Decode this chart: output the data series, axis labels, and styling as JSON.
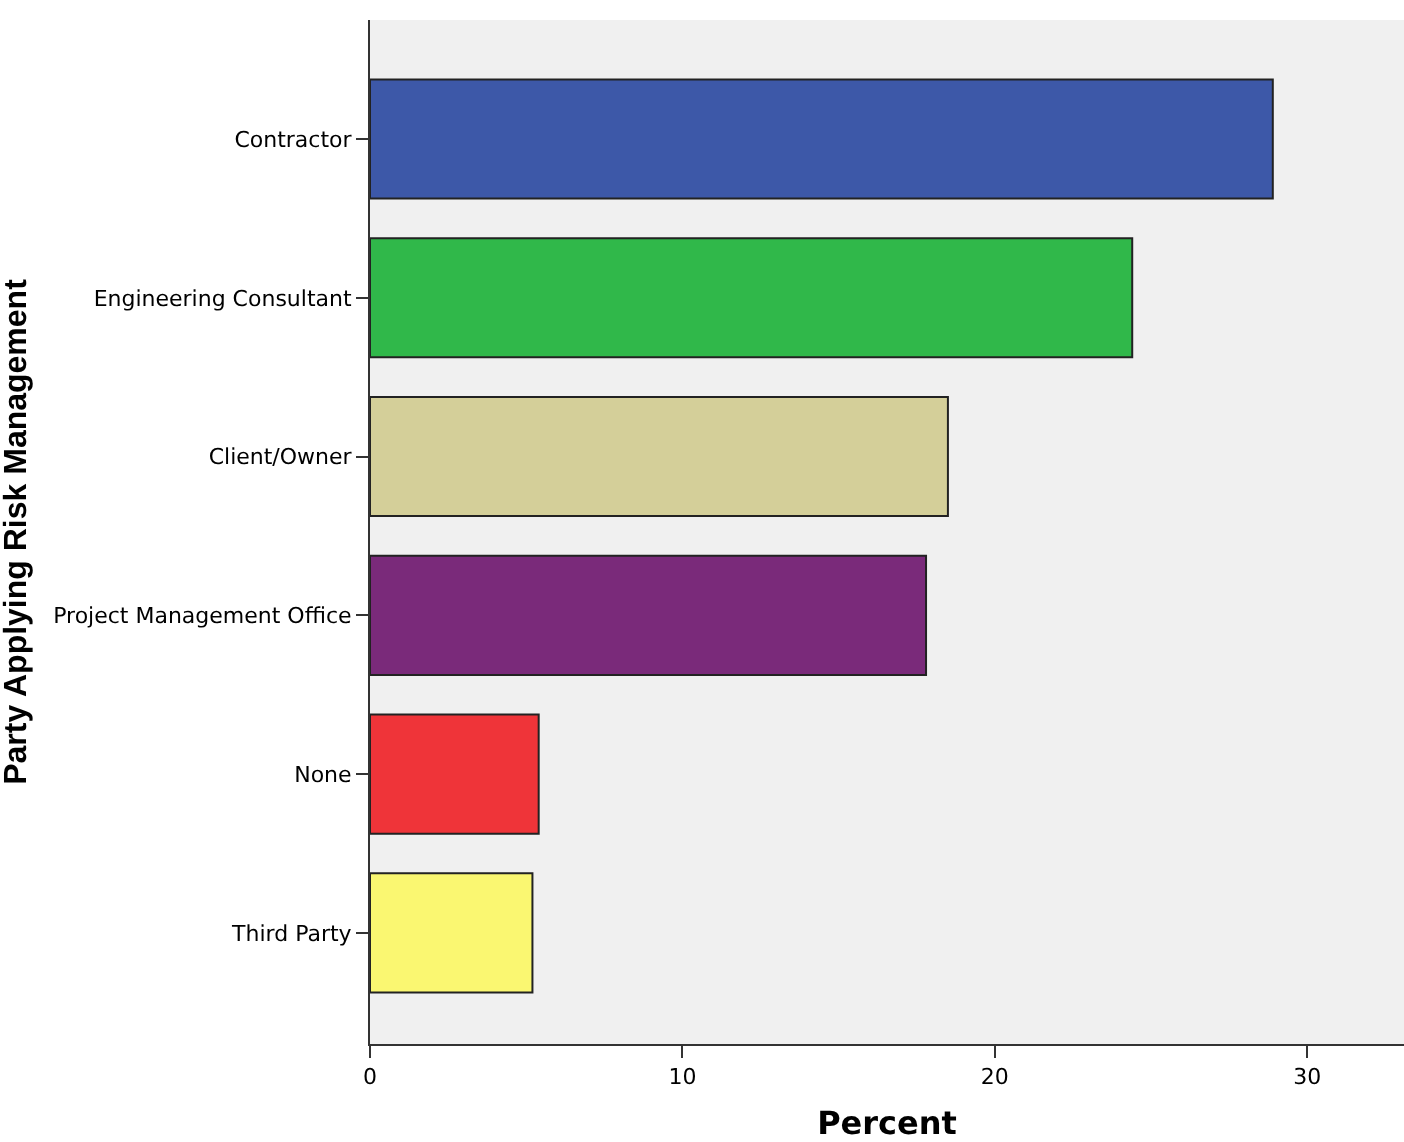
{
  "chart_data": {
    "type": "bar",
    "orientation": "horizontal",
    "xlabel": "Percent",
    "ylabel": "Party Applying Risk Management",
    "categories": [
      "Contractor",
      "Engineering Consultant",
      "Client/Owner",
      "Project Management Office",
      "None",
      "Third Party"
    ],
    "values": [
      28.9,
      24.4,
      18.5,
      17.8,
      5.4,
      5.2
    ],
    "colors": [
      "#3d58a8",
      "#30b84a",
      "#d4cf99",
      "#7a2a7a",
      "#ef3439",
      "#faf771"
    ],
    "xlim": [
      0,
      33.1
    ],
    "xticks": [
      0,
      10,
      20,
      30
    ],
    "grid": false
  }
}
